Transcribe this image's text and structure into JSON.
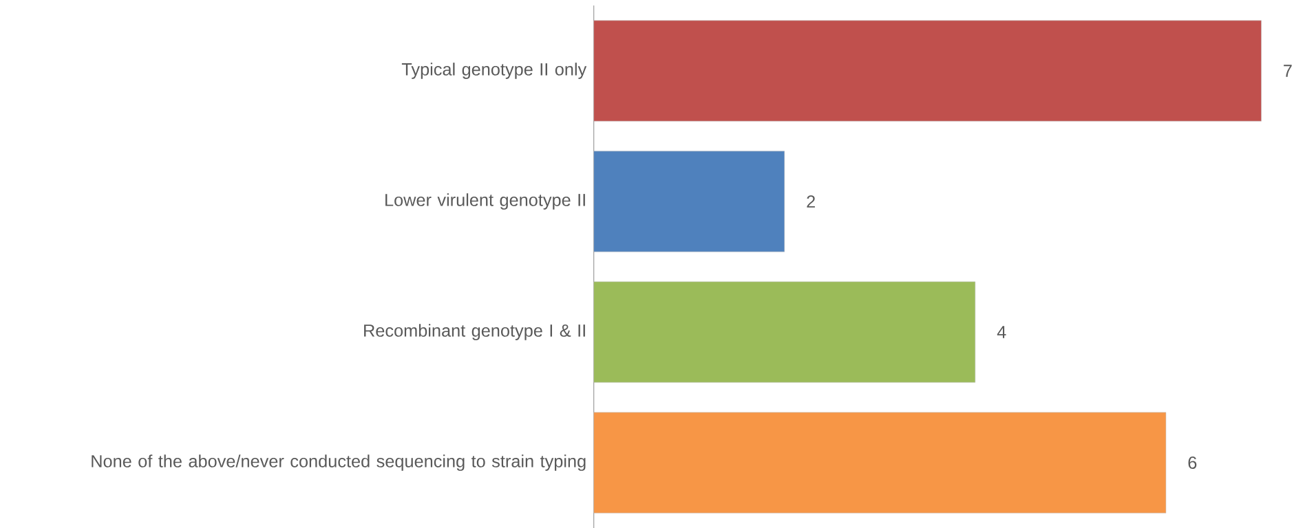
{
  "chart_data": {
    "type": "bar",
    "orientation": "horizontal",
    "categories": [
      "Typical genotype II only",
      "Lower virulent genotype II",
      "Recombinant genotype I & II",
      "None of the above/never conducted sequencing to strain typing"
    ],
    "values": [
      7,
      2,
      4,
      6
    ],
    "colors": [
      "#c0504d",
      "#4f81bd",
      "#9bbb59",
      "#f79646"
    ],
    "data_labels": true
  }
}
